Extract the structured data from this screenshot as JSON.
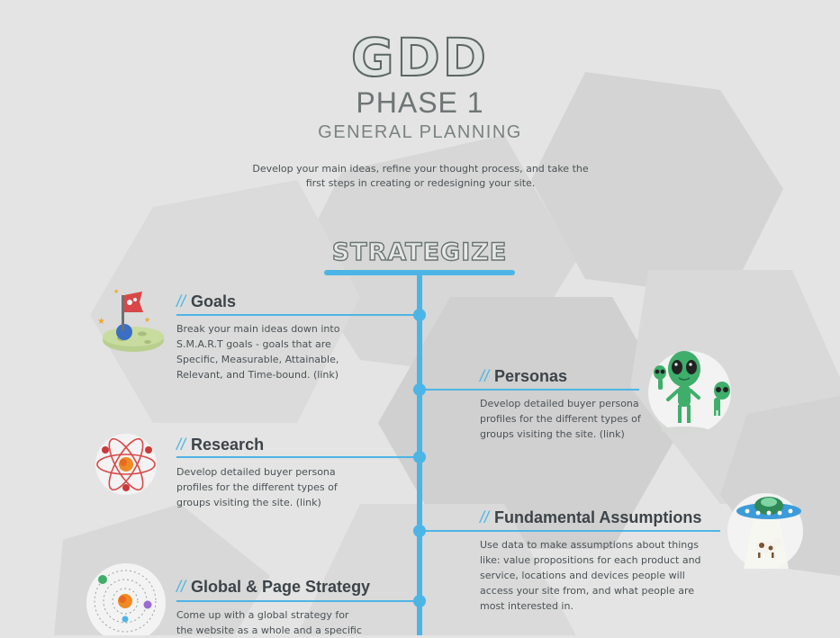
{
  "header": {
    "title": "GDD",
    "phase": "PHASE 1",
    "subtitle": "GENERAL PLANNING",
    "intro": "Develop your main ideas, refine your thought process, and take the first steps in creating or redesigning your site."
  },
  "section": {
    "title": "STRATEGIZE"
  },
  "colors": {
    "accent": "#4db5e6",
    "background": "#e3e4e3"
  },
  "items": [
    {
      "slashes": "//",
      "title": "Goals",
      "icon": "planet-flag-icon",
      "desc": "Break your main ideas down into S.M.A.R.T goals - goals that are Specific, Measurable, Attainable, Relevant, and Time-bound. (link)"
    },
    {
      "slashes": "//",
      "title": "Personas",
      "icon": "aliens-icon",
      "desc": "Develop detailed buyer persona profiles for the different types of groups visiting the site. (link)"
    },
    {
      "slashes": "//",
      "title": "Research",
      "icon": "atom-icon",
      "desc": "Develop detailed buyer persona profiles for the different types of groups visiting the site. (link)"
    },
    {
      "slashes": "//",
      "title": "Fundamental Assumptions",
      "icon": "ufo-cow-icon",
      "desc": "Use data to make assumptions about things like: value propositions for each product and service, locations and devices people will access your site from, and what people are most interested in."
    },
    {
      "slashes": "//",
      "title": "Global & Page Strategy",
      "icon": "solar-system-icon",
      "desc": "Come up with a global strategy for the website as a whole and a specific"
    }
  ]
}
